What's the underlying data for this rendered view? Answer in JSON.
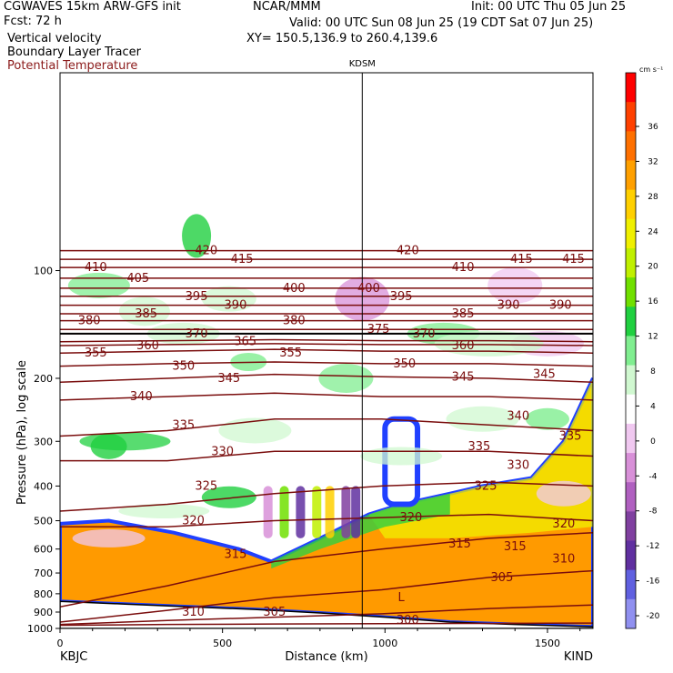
{
  "header": {
    "model": "CGWAVES 15km ARW-GFS init",
    "forecast": "Fcst:   72 h",
    "field1": "Vertical velocity",
    "field2": "Boundary Layer Tracer",
    "field3": "Potential Temperature",
    "org": "NCAR/MMM",
    "init": "Init: 00 UTC Thu 05 Jun 25",
    "valid": "Valid: 00 UTC Sun 08 Jun 25 (19 CDT Sat 07 Jun 25)",
    "xy": "XY= 150.5,136.9 to 260.4,139.6"
  },
  "colors": {
    "theta": "#7a0d0d",
    "frame": "#000000",
    "red_text": "#8b1a1a"
  },
  "chart_data": {
    "type": "heatmap",
    "title": "",
    "xlabel": "Distance (km)",
    "ylabel": "Pressure (hPa), log scale",
    "xlim": [
      0,
      1640
    ],
    "ylim": [
      1000,
      28
    ],
    "x_ticks": [
      0,
      500,
      1000,
      1500
    ],
    "y_ticks": [
      100,
      200,
      300,
      400,
      500,
      600,
      700,
      800,
      900,
      1000
    ],
    "x_endpoints": [
      "KBJC",
      "KIND"
    ],
    "marker": {
      "label": "KDSM",
      "distance_km": 930
    },
    "colorbar": {
      "unit": "cm s⁻¹",
      "ticks": [
        36,
        32,
        28,
        24,
        20,
        16,
        12,
        8,
        4,
        0,
        -4,
        -8,
        -12,
        -16,
        -20
      ],
      "colors": [
        "#ff0000",
        "#ff4000",
        "#ff7000",
        "#ffa000",
        "#ffd000",
        "#f0f000",
        "#c0f000",
        "#70e000",
        "#20d040",
        "#80ee90",
        "#d0f8d0",
        "#ffffff",
        "#f0c8f0",
        "#d890d8",
        "#b060c0",
        "#8040a0",
        "#6030a0",
        "#6060e0",
        "#9090f0"
      ]
    },
    "theta_contours": [
      {
        "theta": 300,
        "p": [
          980,
          975,
          972,
          970,
          968,
          966
        ]
      },
      {
        "theta": 305,
        "p": [
          975,
          950,
          930,
          910,
          880,
          860
        ]
      },
      {
        "theta": 310,
        "p": [
          960,
          890,
          820,
          780,
          720,
          690
        ]
      },
      {
        "theta": 315,
        "p": [
          870,
          760,
          650,
          600,
          560,
          540
        ]
      },
      {
        "theta": 320,
        "p": [
          520,
          520,
          500,
          490,
          480,
          500
        ]
      },
      {
        "theta": 325,
        "p": [
          470,
          450,
          420,
          400,
          390,
          400
        ]
      },
      {
        "theta": 330,
        "p": [
          340,
          340,
          320,
          320,
          320,
          330
        ]
      },
      {
        "theta": 335,
        "p": [
          290,
          280,
          260,
          260,
          270,
          280
        ]
      },
      {
        "theta": 340,
        "p": [
          230,
          225,
          220,
          225,
          225,
          230
        ]
      },
      {
        "theta": 345,
        "p": [
          205,
          200,
          195,
          198,
          200,
          205
        ]
      },
      {
        "theta": 350,
        "p": [
          185,
          182,
          180,
          182,
          182,
          185
        ]
      },
      {
        "theta": 355,
        "p": [
          170,
          168,
          166,
          168,
          168,
          170
        ]
      },
      {
        "theta": 360,
        "p": [
          162,
          161,
          160,
          161,
          161,
          162
        ]
      },
      {
        "theta": 365,
        "p": [
          158,
          157,
          156,
          157,
          157,
          158
        ]
      },
      {
        "theta": 370,
        "p": [
          150,
          150,
          150,
          150,
          150,
          150
        ]
      },
      {
        "theta": 375,
        "p": [
          146,
          146,
          146,
          146,
          146,
          146
        ]
      },
      {
        "theta": 380,
        "p": [
          138,
          138,
          138,
          138,
          138,
          138
        ]
      },
      {
        "theta": 385,
        "p": [
          132,
          132,
          132,
          132,
          132,
          132
        ]
      },
      {
        "theta": 390,
        "p": [
          125,
          125,
          125,
          125,
          125,
          125
        ]
      },
      {
        "theta": 395,
        "p": [
          118,
          118,
          118,
          118,
          118,
          118
        ]
      },
      {
        "theta": 400,
        "p": [
          112,
          112,
          112,
          112,
          112,
          112
        ]
      },
      {
        "theta": 405,
        "p": [
          105,
          105,
          105,
          105,
          105,
          105
        ]
      },
      {
        "theta": 410,
        "p": [
          98,
          98,
          98,
          98,
          98,
          98
        ]
      },
      {
        "theta": 415,
        "p": [
          93,
          93,
          93,
          93,
          93,
          93
        ]
      },
      {
        "theta": 420,
        "p": [
          88,
          88,
          88,
          88,
          88,
          88
        ]
      }
    ],
    "contour_x": [
      0,
      330,
      660,
      990,
      1320,
      1640
    ],
    "theta_labels": [
      {
        "text": "410",
        "x": 110,
        "p": 98
      },
      {
        "text": "405",
        "x": 240,
        "p": 105
      },
      {
        "text": "420",
        "x": 450,
        "p": 88
      },
      {
        "text": "415",
        "x": 560,
        "p": 93
      },
      {
        "text": "400",
        "x": 720,
        "p": 112
      },
      {
        "text": "400",
        "x": 950,
        "p": 112
      },
      {
        "text": "420",
        "x": 1070,
        "p": 88
      },
      {
        "text": "410",
        "x": 1240,
        "p": 98
      },
      {
        "text": "415",
        "x": 1420,
        "p": 93
      },
      {
        "text": "415",
        "x": 1580,
        "p": 93
      },
      {
        "text": "380",
        "x": 90,
        "p": 138
      },
      {
        "text": "385",
        "x": 265,
        "p": 132
      },
      {
        "text": "395",
        "x": 420,
        "p": 118
      },
      {
        "text": "390",
        "x": 540,
        "p": 125
      },
      {
        "text": "380",
        "x": 720,
        "p": 138
      },
      {
        "text": "395",
        "x": 1050,
        "p": 118
      },
      {
        "text": "385",
        "x": 1240,
        "p": 132
      },
      {
        "text": "390",
        "x": 1380,
        "p": 125
      },
      {
        "text": "390",
        "x": 1540,
        "p": 125
      },
      {
        "text": "370",
        "x": 420,
        "p": 150
      },
      {
        "text": "365",
        "x": 570,
        "p": 158
      },
      {
        "text": "375",
        "x": 980,
        "p": 146
      },
      {
        "text": "370",
        "x": 1120,
        "p": 150
      },
      {
        "text": "360",
        "x": 1240,
        "p": 162
      },
      {
        "text": "360",
        "x": 270,
        "p": 162
      },
      {
        "text": "355",
        "x": 110,
        "p": 170
      },
      {
        "text": "355",
        "x": 710,
        "p": 170
      },
      {
        "text": "350",
        "x": 380,
        "p": 185
      },
      {
        "text": "345",
        "x": 520,
        "p": 200
      },
      {
        "text": "350",
        "x": 1060,
        "p": 182
      },
      {
        "text": "345",
        "x": 1240,
        "p": 198
      },
      {
        "text": "345",
        "x": 1490,
        "p": 195
      },
      {
        "text": "340",
        "x": 250,
        "p": 225
      },
      {
        "text": "335",
        "x": 380,
        "p": 270
      },
      {
        "text": "340",
        "x": 1410,
        "p": 255
      },
      {
        "text": "330",
        "x": 500,
        "p": 320
      },
      {
        "text": "335",
        "x": 1290,
        "p": 310
      },
      {
        "text": "335",
        "x": 1570,
        "p": 290
      },
      {
        "text": "330",
        "x": 1410,
        "p": 350
      },
      {
        "text": "325",
        "x": 450,
        "p": 400
      },
      {
        "text": "325",
        "x": 1310,
        "p": 400
      },
      {
        "text": "320",
        "x": 410,
        "p": 500
      },
      {
        "text": "320",
        "x": 1080,
        "p": 490
      },
      {
        "text": "320",
        "x": 1550,
        "p": 510
      },
      {
        "text": "315",
        "x": 540,
        "p": 620
      },
      {
        "text": "315",
        "x": 1230,
        "p": 580
      },
      {
        "text": "315",
        "x": 1400,
        "p": 590
      },
      {
        "text": "310",
        "x": 1550,
        "p": 640
      },
      {
        "text": "305",
        "x": 1360,
        "p": 720
      },
      {
        "text": "310",
        "x": 410,
        "p": 900
      },
      {
        "text": "305",
        "x": 660,
        "p": 900
      },
      {
        "text": "300",
        "x": 1070,
        "p": 950
      }
    ],
    "low_marker": {
      "text": "L",
      "x": 1050,
      "p": 820
    },
    "terrain_surface_p": [
      {
        "x": 0,
        "p": 840
      },
      {
        "x": 200,
        "p": 855
      },
      {
        "x": 400,
        "p": 870
      },
      {
        "x": 600,
        "p": 885
      },
      {
        "x": 800,
        "p": 905
      },
      {
        "x": 1000,
        "p": 930
      },
      {
        "x": 1200,
        "p": 960
      },
      {
        "x": 1400,
        "p": 975
      },
      {
        "x": 1640,
        "p": 990
      }
    ],
    "boundary_layer_top_p": [
      {
        "x": 0,
        "p": 510
      },
      {
        "x": 150,
        "p": 500
      },
      {
        "x": 350,
        "p": 540
      },
      {
        "x": 550,
        "p": 600
      },
      {
        "x": 650,
        "p": 650
      },
      {
        "x": 800,
        "p": 560
      },
      {
        "x": 950,
        "p": 480
      },
      {
        "x": 1050,
        "p": 450
      },
      {
        "x": 1200,
        "p": 420
      },
      {
        "x": 1300,
        "p": 400
      },
      {
        "x": 1450,
        "p": 380
      },
      {
        "x": 1550,
        "p": 300
      },
      {
        "x": 1640,
        "p": 200
      }
    ],
    "convective_plume": {
      "x": [
        1000,
        1100
      ],
      "p_top": 260
    }
  }
}
